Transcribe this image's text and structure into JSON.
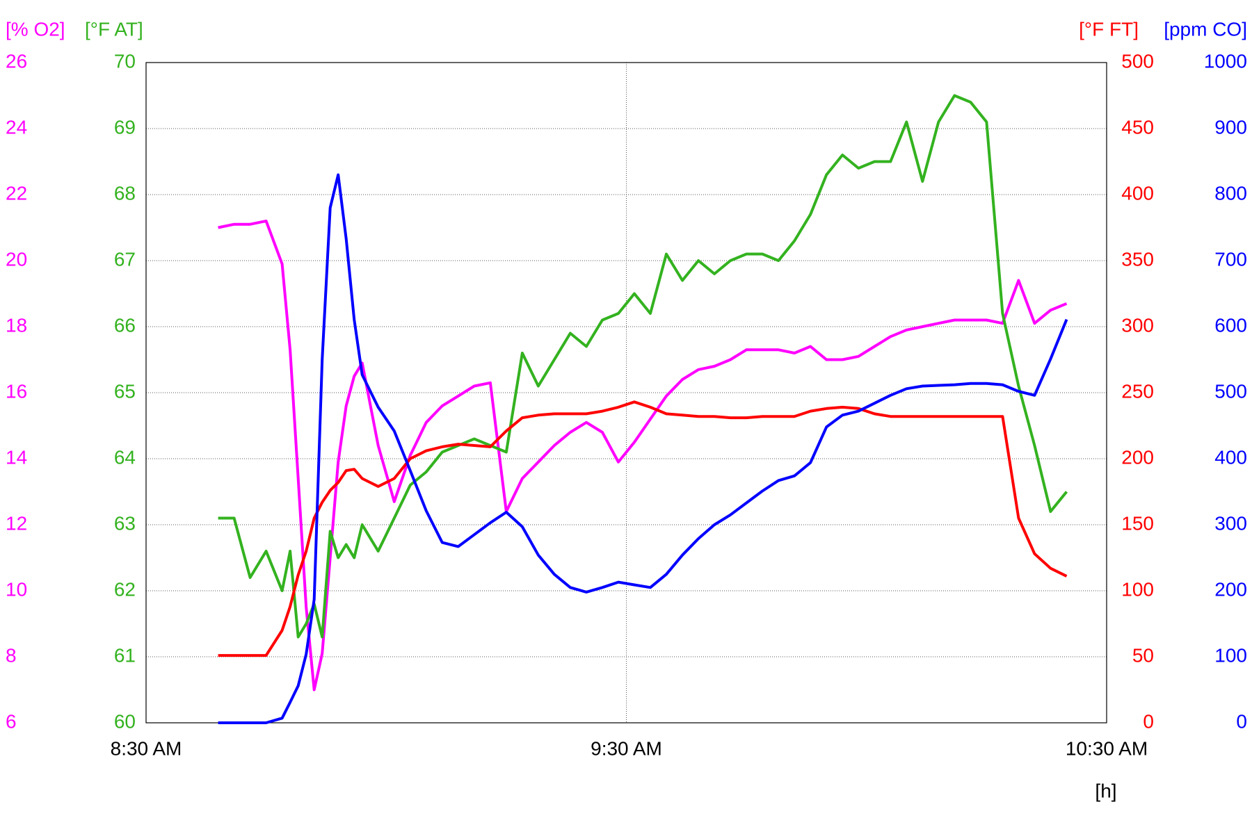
{
  "chart_data": {
    "type": "line",
    "x": [
      "8:39 AM",
      "8:41 AM",
      "8:43 AM",
      "8:45 AM",
      "8:47 AM",
      "8:48 AM",
      "8:49 AM",
      "8:50 AM",
      "8:51 AM",
      "8:52 AM",
      "8:53 AM",
      "8:54 AM",
      "8:55 AM",
      "8:56 AM",
      "8:57 AM",
      "8:59 AM",
      "9:01 AM",
      "9:03 AM",
      "9:05 AM",
      "9:07 AM",
      "9:09 AM",
      "9:11 AM",
      "9:13 AM",
      "9:15 AM",
      "9:17 AM",
      "9:19 AM",
      "9:21 AM",
      "9:23 AM",
      "9:25 AM",
      "9:27 AM",
      "9:29 AM",
      "9:31 AM",
      "9:33 AM",
      "9:35 AM",
      "9:37 AM",
      "9:39 AM",
      "9:41 AM",
      "9:43 AM",
      "9:45 AM",
      "9:47 AM",
      "9:49 AM",
      "9:51 AM",
      "9:53 AM",
      "9:55 AM",
      "9:57 AM",
      "9:59 AM",
      "10:01 AM",
      "10:03 AM",
      "10:05 AM",
      "10:07 AM",
      "10:09 AM",
      "10:11 AM",
      "10:13 AM",
      "10:15 AM",
      "10:17 AM",
      "10:19 AM",
      "10:21 AM",
      "10:23 AM",
      "10:25 AM"
    ],
    "xlim": [
      "8:30 AM",
      "10:30 AM"
    ],
    "xticks": [
      "8:30 AM",
      "9:30 AM",
      "10:30 AM"
    ],
    "xlabel": "[h]",
    "grid": true,
    "series": [
      {
        "name": "[% O2]",
        "color": "#ff00ff",
        "ylim": [
          6,
          26
        ],
        "yticks": [
          6,
          8,
          10,
          12,
          14,
          16,
          18,
          20,
          22,
          24,
          26
        ],
        "values": [
          21.0,
          21.1,
          21.1,
          21.2,
          19.9,
          17.3,
          13.4,
          9.5,
          7.0,
          8.1,
          11.0,
          13.9,
          15.6,
          16.5,
          16.9,
          14.4,
          12.7,
          14.1,
          15.1,
          15.6,
          15.9,
          16.2,
          16.3,
          12.4,
          13.4,
          13.9,
          14.4,
          14.8,
          15.1,
          14.8,
          13.9,
          14.5,
          15.2,
          15.9,
          16.4,
          16.7,
          16.8,
          17.0,
          17.3,
          17.3,
          17.3,
          17.2,
          17.4,
          17.0,
          17.0,
          17.1,
          17.4,
          17.7,
          17.9,
          18.0,
          18.1,
          18.2,
          18.2,
          18.2,
          18.1,
          19.4,
          18.1,
          18.5,
          18.7
        ]
      },
      {
        "name": "[°F AT]",
        "color": "#33b21f",
        "ylim": [
          60,
          70
        ],
        "yticks": [
          60,
          61,
          62,
          63,
          64,
          65,
          66,
          67,
          68,
          69,
          70
        ],
        "values": [
          63.1,
          63.1,
          62.2,
          62.6,
          62.0,
          62.6,
          61.3,
          61.5,
          61.8,
          61.3,
          62.9,
          62.5,
          62.7,
          62.5,
          63.0,
          62.6,
          63.1,
          63.6,
          63.8,
          64.1,
          64.2,
          64.3,
          64.2,
          64.1,
          65.6,
          65.1,
          65.5,
          65.9,
          65.7,
          66.1,
          66.2,
          66.5,
          66.2,
          67.1,
          66.7,
          67.0,
          66.8,
          67.0,
          67.1,
          67.1,
          67.0,
          67.3,
          67.7,
          68.3,
          68.6,
          68.4,
          68.5,
          68.5,
          69.1,
          68.2,
          69.1,
          69.5,
          69.4,
          69.1,
          66.2,
          65.1,
          64.2,
          63.2,
          63.5
        ]
      },
      {
        "name": "[°F FT]",
        "color": "#ff0000",
        "ylim": [
          0,
          500
        ],
        "yticks": [
          0,
          50,
          100,
          150,
          200,
          250,
          300,
          350,
          400,
          450,
          500
        ],
        "values": [
          51,
          51,
          51,
          51,
          70,
          88,
          112,
          130,
          155,
          167,
          176,
          182,
          191,
          192,
          185,
          179,
          185,
          200,
          206,
          209,
          211,
          210,
          209,
          221,
          231,
          233,
          234,
          234,
          234,
          236,
          239,
          243,
          239,
          234,
          233,
          232,
          232,
          231,
          231,
          232,
          232,
          232,
          236,
          238,
          239,
          238,
          234,
          232,
          232,
          232,
          232,
          232,
          232,
          232,
          232,
          155,
          128,
          117,
          111
        ]
      },
      {
        "name": "[ppm CO]",
        "color": "#0000ff",
        "ylim": [
          0,
          1000
        ],
        "yticks": [
          0,
          100,
          200,
          300,
          400,
          500,
          600,
          700,
          800,
          900,
          1000
        ],
        "values": [
          0,
          0,
          0,
          0,
          7,
          31,
          56,
          104,
          187,
          550,
          780,
          830,
          733,
          611,
          527,
          478,
          442,
          382,
          321,
          273,
          267,
          285,
          303,
          319,
          297,
          254,
          225,
          205,
          198,
          205,
          213,
          209,
          205,
          225,
          254,
          279,
          300,
          315,
          333,
          351,
          367,
          374,
          394,
          448,
          466,
          472,
          484,
          496,
          506,
          510,
          511,
          512,
          514,
          514,
          512,
          502,
          496,
          551,
          611
        ]
      }
    ]
  }
}
